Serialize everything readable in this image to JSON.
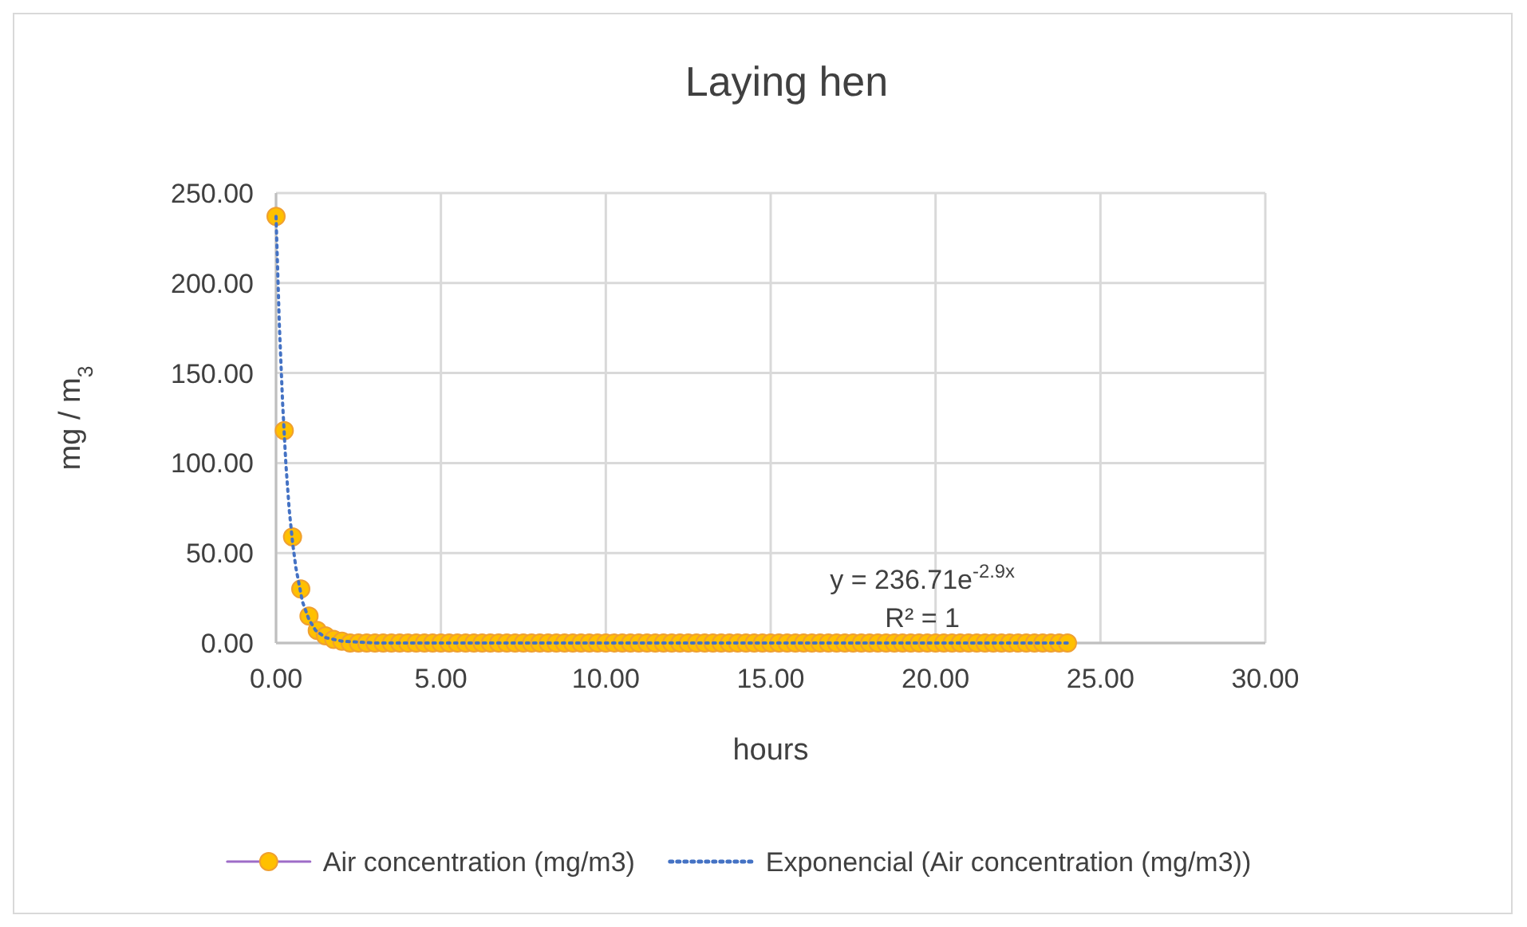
{
  "chart_data": {
    "type": "line",
    "title": "Laying hen",
    "xlabel": "hours",
    "ylabel": "mg / m$_{3}$",
    "xlim": [
      0,
      30
    ],
    "xticks": [
      {
        "value": 0,
        "label": "0.00"
      },
      {
        "value": 5,
        "label": "5.00"
      },
      {
        "value": 10,
        "label": "10.00"
      },
      {
        "value": 15,
        "label": "15.00"
      },
      {
        "value": 20,
        "label": "20.00"
      },
      {
        "value": 25,
        "label": "25.00"
      },
      {
        "value": 30,
        "label": "30.00"
      }
    ],
    "ylim": [
      0,
      250
    ],
    "yticks": [
      {
        "value": 0,
        "label": "0.00"
      },
      {
        "value": 50,
        "label": "50.00"
      },
      {
        "value": 100,
        "label": "100.00"
      },
      {
        "value": 150,
        "label": "150.00"
      },
      {
        "value": 200,
        "label": "200.00"
      },
      {
        "value": 250,
        "label": "250.00"
      }
    ],
    "grid": true,
    "legend": "bottom",
    "annotations": [
      "y = 236.71e$^{-2.9x}$",
      "R² = 1"
    ],
    "series": [
      {
        "name": "Air concentration (mg/m3)",
        "type": "scatter",
        "marker": "circle",
        "line_style": "solid",
        "color": "#ffc000",
        "x": [
          0,
          0.25,
          0.5,
          0.75,
          1,
          1.25,
          1.5,
          1.75,
          2,
          2.25,
          2.5,
          2.75,
          3,
          3.25,
          3.5,
          3.75,
          4,
          4.25,
          4.5,
          4.75,
          5,
          5.25,
          5.5,
          5.75,
          6,
          6.25,
          6.5,
          6.75,
          7,
          7.25,
          7.5,
          7.75,
          8,
          8.25,
          8.5,
          8.75,
          9,
          9.25,
          9.5,
          9.75,
          10,
          10.25,
          10.5,
          10.75,
          11,
          11.25,
          11.5,
          11.75,
          12,
          12.25,
          12.5,
          12.75,
          13,
          13.25,
          13.5,
          13.75,
          14,
          14.25,
          14.5,
          14.75,
          15,
          15.25,
          15.5,
          15.75,
          16,
          16.25,
          16.5,
          16.75,
          17,
          17.25,
          17.5,
          17.75,
          18,
          18.25,
          18.5,
          18.75,
          19,
          19.25,
          19.5,
          19.75,
          20,
          20.25,
          20.5,
          20.75,
          21,
          21.25,
          21.5,
          21.75,
          22,
          22.25,
          22.5,
          22.75,
          23,
          23.25,
          23.5,
          23.75,
          24
        ],
        "values": [
          237,
          118,
          59,
          30,
          15,
          7,
          4,
          2,
          1,
          0,
          0,
          0,
          0,
          0,
          0,
          0,
          0,
          0,
          0,
          0,
          0,
          0,
          0,
          0,
          0,
          0,
          0,
          0,
          0,
          0,
          0,
          0,
          0,
          0,
          0,
          0,
          0,
          0,
          0,
          0,
          0,
          0,
          0,
          0,
          0,
          0,
          0,
          0,
          0,
          0,
          0,
          0,
          0,
          0,
          0,
          0,
          0,
          0,
          0,
          0,
          0,
          0,
          0,
          0,
          0,
          0,
          0,
          0,
          0,
          0,
          0,
          0,
          0,
          0,
          0,
          0,
          0,
          0,
          0,
          0,
          0,
          0,
          0,
          0,
          0,
          0,
          0,
          0,
          0,
          0,
          0,
          0,
          0,
          0,
          0,
          0,
          0
        ]
      },
      {
        "name": "Exponencial (Air concentration (mg/m3))",
        "marker": "none",
        "line_style": "dotted",
        "color": "#4472c4",
        "x": [
          0,
          0.1,
          0.2,
          0.3,
          0.4,
          0.5,
          0.6,
          0.8,
          1,
          1.2,
          1.5,
          2,
          3,
          5,
          10,
          24
        ],
        "values": [
          237,
          177,
          133,
          99,
          74,
          56,
          42,
          23,
          13,
          7,
          3,
          1,
          0,
          0,
          0,
          0
        ]
      }
    ]
  }
}
